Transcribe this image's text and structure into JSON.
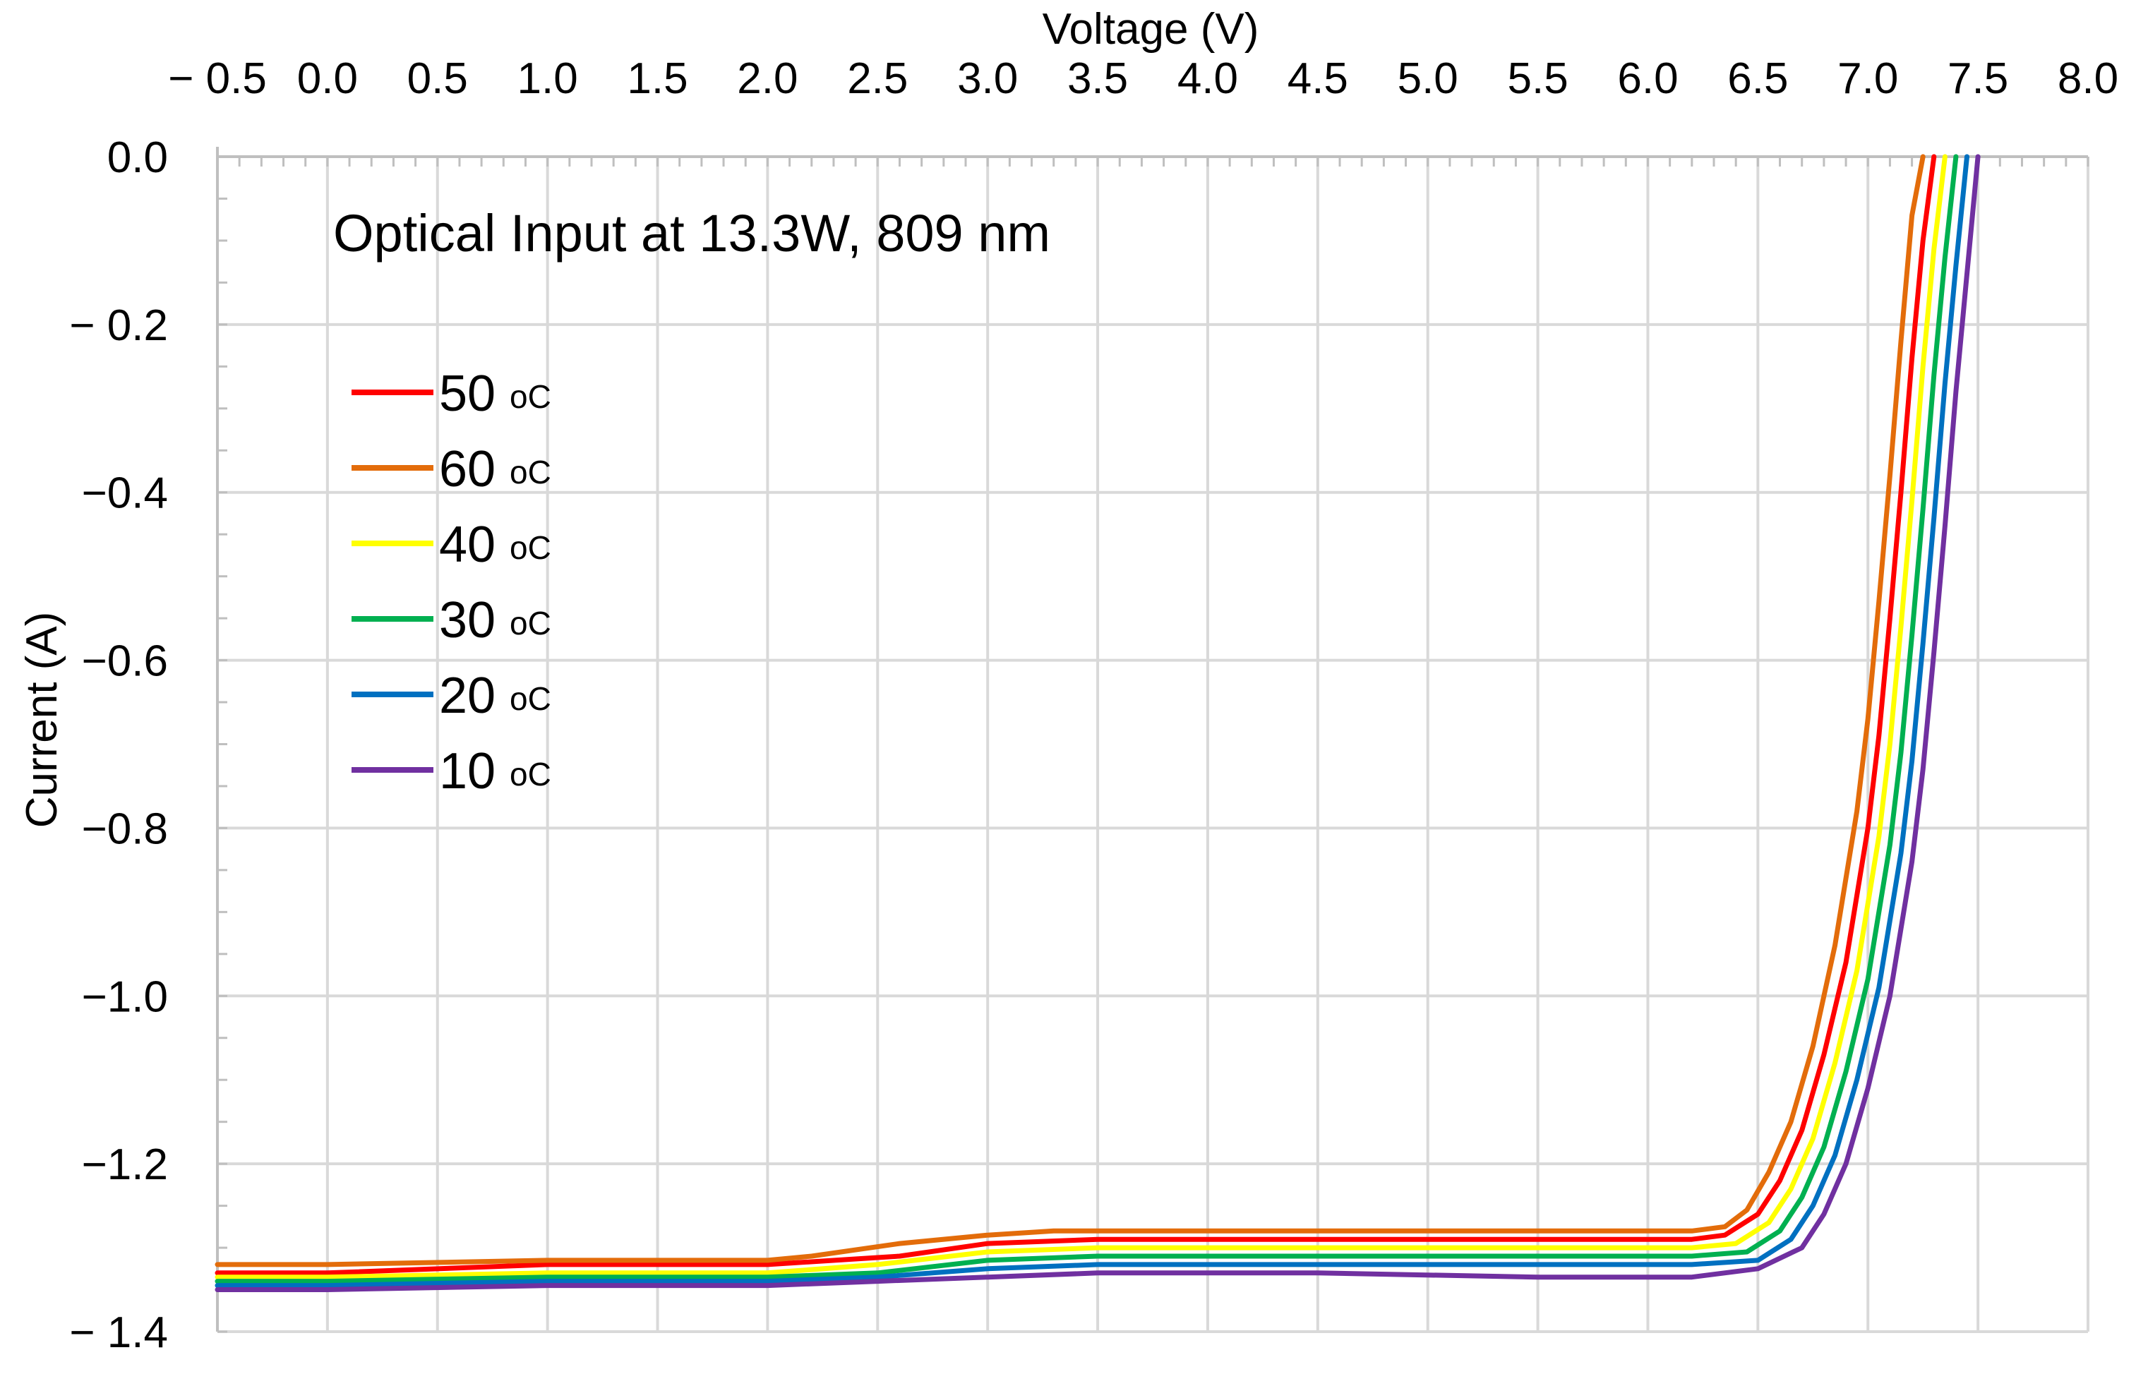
{
  "chart_data": {
    "type": "line",
    "title": "",
    "annotation": "Optical Input at 13.3W, 809 nm",
    "xlabel": "Voltage (V)",
    "ylabel": "Current (A)",
    "xaxis_position": "top",
    "xlim": [
      -0.5,
      8.0
    ],
    "ylim": [
      -1.4,
      0.0
    ],
    "xticks": [
      -0.5,
      0.0,
      0.5,
      1.0,
      1.5,
      2.0,
      2.5,
      3.0,
      3.5,
      4.0,
      4.5,
      5.0,
      5.5,
      6.0,
      6.5,
      7.0,
      7.5,
      8.0
    ],
    "xtick_labels": [
      "− 0.5",
      "0.0",
      "0.5",
      "1.0",
      "1.5",
      "2.0",
      "2.5",
      "3.0",
      "3.5",
      "4.0",
      "4.5",
      "5.0",
      "5.5",
      "6.0",
      "6.5",
      "7.0",
      "7.5",
      "8.0"
    ],
    "yticks": [
      0.0,
      -0.2,
      -0.4,
      -0.6,
      -0.8,
      -1.0,
      -1.2,
      -1.4
    ],
    "ytick_labels": [
      "0.0",
      "− 0.2",
      "−0.4",
      "−0.6",
      "−0.8",
      "−1.0",
      "−1.2",
      "− 1.4"
    ],
    "grid": true,
    "legend_position": "upper-left",
    "series": [
      {
        "name": "50",
        "unit": "oC",
        "color": "#ff0000",
        "x": [
          -0.5,
          0.0,
          1.0,
          2.0,
          2.6,
          3.0,
          3.5,
          4.5,
          5.5,
          6.2,
          6.35,
          6.5,
          6.6,
          6.7,
          6.8,
          6.9,
          7.0,
          7.05,
          7.1,
          7.15,
          7.2,
          7.25,
          7.3
        ],
        "y": [
          -1.33,
          -1.33,
          -1.32,
          -1.32,
          -1.31,
          -1.295,
          -1.29,
          -1.29,
          -1.29,
          -1.29,
          -1.285,
          -1.26,
          -1.22,
          -1.16,
          -1.07,
          -0.96,
          -0.8,
          -0.69,
          -0.55,
          -0.4,
          -0.24,
          -0.1,
          0.0
        ]
      },
      {
        "name": "60",
        "unit": "oC",
        "color": "#e36c0a",
        "x": [
          -0.5,
          0.0,
          1.0,
          2.0,
          2.2,
          2.6,
          3.0,
          3.3,
          4.5,
          5.5,
          6.2,
          6.35,
          6.45,
          6.55,
          6.65,
          6.75,
          6.85,
          6.95,
          7.0,
          7.05,
          7.1,
          7.15,
          7.2,
          7.25
        ],
        "y": [
          -1.32,
          -1.32,
          -1.315,
          -1.315,
          -1.31,
          -1.295,
          -1.285,
          -1.28,
          -1.28,
          -1.28,
          -1.28,
          -1.275,
          -1.255,
          -1.21,
          -1.15,
          -1.06,
          -0.94,
          -0.78,
          -0.67,
          -0.53,
          -0.38,
          -0.22,
          -0.07,
          0.0
        ]
      },
      {
        "name": "40",
        "unit": "oC",
        "color": "#ffff00",
        "x": [
          -0.5,
          0.0,
          1.0,
          2.0,
          2.5,
          3.0,
          3.5,
          4.5,
          5.5,
          6.2,
          6.4,
          6.55,
          6.65,
          6.75,
          6.85,
          6.95,
          7.05,
          7.1,
          7.15,
          7.2,
          7.25,
          7.3,
          7.35
        ],
        "y": [
          -1.335,
          -1.335,
          -1.33,
          -1.33,
          -1.32,
          -1.305,
          -1.3,
          -1.3,
          -1.3,
          -1.3,
          -1.295,
          -1.27,
          -1.23,
          -1.17,
          -1.08,
          -0.97,
          -0.81,
          -0.7,
          -0.56,
          -0.41,
          -0.25,
          -0.11,
          0.0
        ]
      },
      {
        "name": "30",
        "unit": "oC",
        "color": "#00b050",
        "x": [
          -0.5,
          0.0,
          1.0,
          2.0,
          2.5,
          3.0,
          3.5,
          4.5,
          5.5,
          6.2,
          6.45,
          6.6,
          6.7,
          6.8,
          6.9,
          7.0,
          7.1,
          7.15,
          7.2,
          7.25,
          7.3,
          7.35,
          7.4
        ],
        "y": [
          -1.34,
          -1.34,
          -1.335,
          -1.335,
          -1.33,
          -1.315,
          -1.31,
          -1.31,
          -1.31,
          -1.31,
          -1.305,
          -1.28,
          -1.24,
          -1.18,
          -1.09,
          -0.98,
          -0.82,
          -0.71,
          -0.57,
          -0.42,
          -0.26,
          -0.12,
          0.0
        ]
      },
      {
        "name": "20",
        "unit": "oC",
        "color": "#0070c0",
        "x": [
          -0.5,
          0.0,
          1.0,
          2.0,
          2.5,
          3.0,
          3.5,
          4.5,
          5.5,
          6.2,
          6.5,
          6.65,
          6.75,
          6.85,
          6.95,
          7.05,
          7.15,
          7.2,
          7.25,
          7.3,
          7.35,
          7.4,
          7.45
        ],
        "y": [
          -1.345,
          -1.345,
          -1.34,
          -1.34,
          -1.335,
          -1.325,
          -1.32,
          -1.32,
          -1.32,
          -1.32,
          -1.315,
          -1.29,
          -1.25,
          -1.19,
          -1.1,
          -0.99,
          -0.83,
          -0.72,
          -0.58,
          -0.43,
          -0.27,
          -0.13,
          0.0
        ]
      },
      {
        "name": "10",
        "unit": "oC",
        "color": "#7030a0",
        "x": [
          -0.5,
          0.0,
          1.0,
          2.0,
          2.5,
          3.0,
          3.5,
          4.5,
          5.5,
          6.2,
          6.5,
          6.7,
          6.8,
          6.9,
          7.0,
          7.1,
          7.2,
          7.25,
          7.3,
          7.35,
          7.4,
          7.45,
          7.5
        ],
        "y": [
          -1.35,
          -1.35,
          -1.345,
          -1.345,
          -1.34,
          -1.335,
          -1.33,
          -1.33,
          -1.335,
          -1.335,
          -1.325,
          -1.3,
          -1.26,
          -1.2,
          -1.11,
          -1.0,
          -0.84,
          -0.73,
          -0.59,
          -0.44,
          -0.28,
          -0.14,
          0.0
        ]
      }
    ]
  }
}
